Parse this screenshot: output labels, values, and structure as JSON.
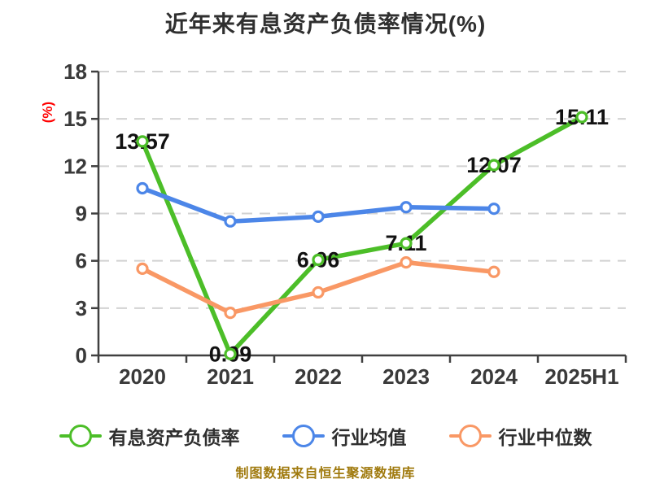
{
  "chart": {
    "title": "近年来有息资产负债率情况(%)",
    "y_unit": "(%)",
    "source_note": "制图数据来自恒生聚源数据库"
  },
  "legend": [
    {
      "label": "有息资产负债率",
      "color": "#4cbe28"
    },
    {
      "label": "行业均值",
      "color": "#4c86e8"
    },
    {
      "label": "行业中位数",
      "color": "#f99865"
    }
  ],
  "chart_data": {
    "type": "line",
    "title": "近年来有息资产负债率情况(%)",
    "xlabel": "",
    "ylabel": "(%)",
    "categories": [
      "2020",
      "2021",
      "2022",
      "2023",
      "2024",
      "2025H1"
    ],
    "series": [
      {
        "name": "有息资产负债率",
        "color": "#4cbe28",
        "values": [
          13.57,
          0.09,
          6.06,
          7.11,
          12.07,
          15.11
        ],
        "data_labels": true
      },
      {
        "name": "行业均值",
        "color": "#4c86e8",
        "values": [
          10.6,
          8.5,
          8.8,
          9.4,
          9.3,
          null
        ],
        "data_labels": false
      },
      {
        "name": "行业中位数",
        "color": "#f99865",
        "values": [
          5.5,
          2.7,
          4.0,
          5.9,
          5.3,
          null
        ],
        "data_labels": false
      }
    ],
    "ylim": [
      0,
      18
    ],
    "y_ticks": [
      0,
      3,
      6,
      9,
      12,
      15,
      18
    ],
    "grid": "horizontal-dashed",
    "legend_position": "bottom",
    "style": {
      "axis_color": "#404040",
      "grid_color": "#d2d2d2",
      "tick_label_color": "#3a3a3a",
      "data_label_color": "#121212",
      "marker_fill": "#ffffff"
    }
  }
}
